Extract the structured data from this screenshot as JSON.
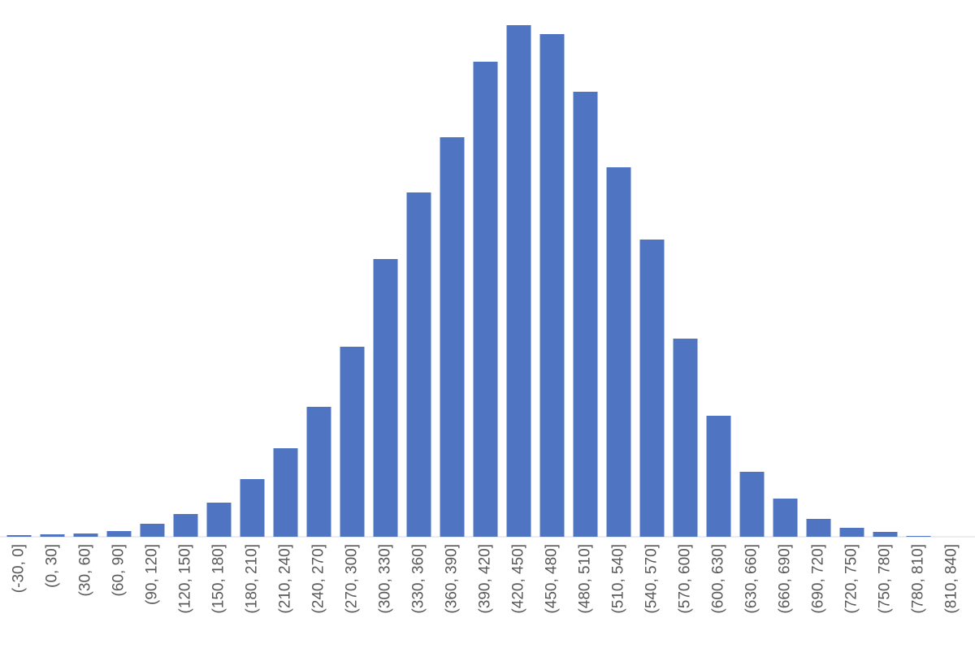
{
  "chart_data": {
    "type": "bar",
    "categories": [
      "(-30, 0]",
      "(0, 30]",
      "(30, 60]",
      "(60, 90]",
      "(90, 120]",
      "(120, 150]",
      "(150, 180]",
      "(180, 210]",
      "(210, 240]",
      "(240, 270]",
      "(270, 300]",
      "(300, 330]",
      "(330, 360]",
      "(360, 390]",
      "(390, 420]",
      "(420, 450]",
      "(450, 480]",
      "(480, 510]",
      "(510, 540]",
      "(540, 570]",
      "(570, 600]",
      "(600, 630]",
      "(630, 660]",
      "(660, 690]",
      "(690, 720]",
      "(720, 750]",
      "(750, 780]",
      "(780, 810]",
      "(810, 840]"
    ],
    "values": [
      2,
      3,
      4,
      7,
      16,
      28,
      42,
      71,
      109,
      160,
      234,
      342,
      424,
      492,
      585,
      630,
      619,
      548,
      455,
      366,
      244,
      149,
      80,
      47,
      22,
      11,
      6,
      1,
      0
    ],
    "color": "#4f74c1"
  }
}
